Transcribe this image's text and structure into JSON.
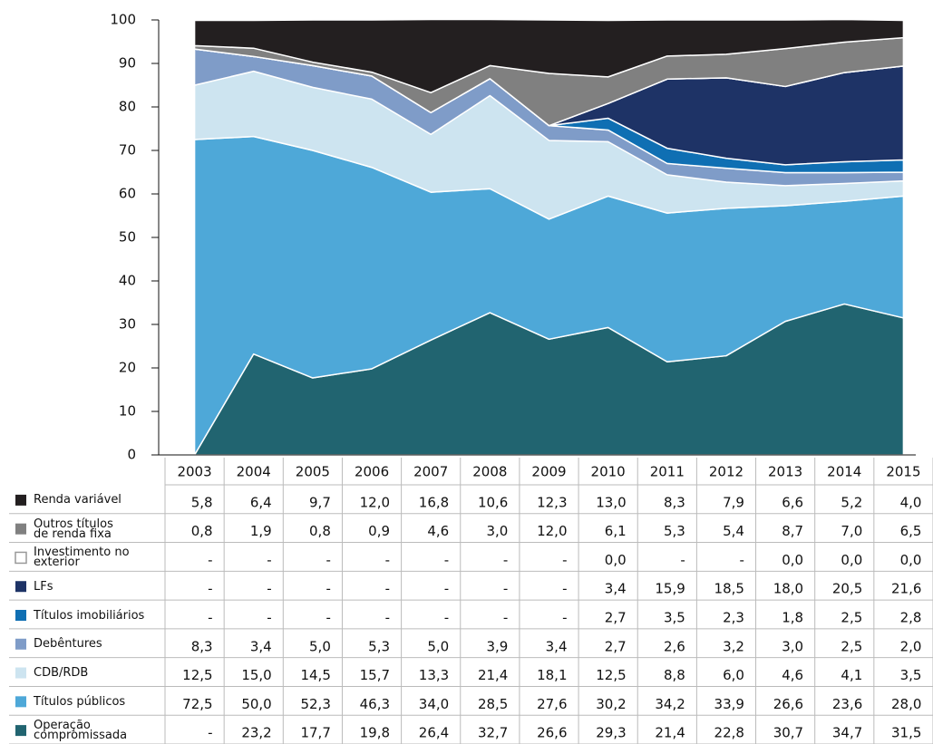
{
  "chart_data": {
    "type": "area",
    "stacked": true,
    "categories": [
      "2003",
      "2004",
      "2005",
      "2006",
      "2007",
      "2008",
      "2009",
      "2010",
      "2011",
      "2012",
      "2013",
      "2014",
      "2015"
    ],
    "ylim": [
      0,
      100
    ],
    "yticks": [
      0,
      10,
      20,
      30,
      40,
      50,
      60,
      70,
      80,
      90,
      100
    ],
    "series": [
      {
        "name": "Renda variável",
        "color": "#231f20",
        "values": [
          5.8,
          6.4,
          9.7,
          12.0,
          16.8,
          10.6,
          12.3,
          13.0,
          8.3,
          7.9,
          6.6,
          5.2,
          4.0
        ],
        "value_labels": [
          "5,8",
          "6,4",
          "9,7",
          "12,0",
          "16,8",
          "10,6",
          "12,3",
          "13,0",
          "8,3",
          "7,9",
          "6,6",
          "5,2",
          "4,0"
        ]
      },
      {
        "name": "Outros títulos\nde renda fixa",
        "color": "#808080",
        "values": [
          0.8,
          1.9,
          0.8,
          0.9,
          4.6,
          3.0,
          12.0,
          6.1,
          5.3,
          5.4,
          8.7,
          7.0,
          6.5
        ],
        "value_labels": [
          "0,8",
          "1,9",
          "0,8",
          "0,9",
          "4,6",
          "3,0",
          "12,0",
          "6,1",
          "5,3",
          "5,4",
          "8,7",
          "7,0",
          "6,5"
        ]
      },
      {
        "name": "Investimento no\nexterior",
        "color": "#ffffff",
        "values": [
          null,
          null,
          null,
          null,
          null,
          null,
          null,
          0.0,
          null,
          null,
          0.0,
          0.0,
          0.0
        ],
        "value_labels": [
          "-",
          "-",
          "-",
          "-",
          "-",
          "-",
          "-",
          "0,0",
          "-",
          "-",
          "0,0",
          "0,0",
          "0,0"
        ]
      },
      {
        "name": "LFs",
        "color": "#1e3366",
        "values": [
          null,
          null,
          null,
          null,
          null,
          null,
          null,
          3.4,
          15.9,
          18.5,
          18.0,
          20.5,
          21.6
        ],
        "value_labels": [
          "-",
          "-",
          "-",
          "-",
          "-",
          "-",
          "-",
          "3,4",
          "15,9",
          "18,5",
          "18,0",
          "20,5",
          "21,6"
        ]
      },
      {
        "name": "Títulos imobiliários",
        "color": "#0f6fb3",
        "values": [
          null,
          null,
          null,
          null,
          null,
          null,
          null,
          2.7,
          3.5,
          2.3,
          1.8,
          2.5,
          2.8
        ],
        "value_labels": [
          "-",
          "-",
          "-",
          "-",
          "-",
          "-",
          "-",
          "2,7",
          "3,5",
          "2,3",
          "1,8",
          "2,5",
          "2,8"
        ]
      },
      {
        "name": "Debêntures",
        "color": "#7f9cc8",
        "values": [
          8.3,
          3.4,
          5.0,
          5.3,
          5.0,
          3.9,
          3.4,
          2.7,
          2.6,
          3.2,
          3.0,
          2.5,
          2.0
        ],
        "value_labels": [
          "8,3",
          "3,4",
          "5,0",
          "5,3",
          "5,0",
          "3,9",
          "3,4",
          "2,7",
          "2,6",
          "3,2",
          "3,0",
          "2,5",
          "2,0"
        ]
      },
      {
        "name": "CDB/RDB",
        "color": "#cde4f0",
        "values": [
          12.5,
          15.0,
          14.5,
          15.7,
          13.3,
          21.4,
          18.1,
          12.5,
          8.8,
          6.0,
          4.6,
          4.1,
          3.5
        ],
        "value_labels": [
          "12,5",
          "15,0",
          "14,5",
          "15,7",
          "13,3",
          "21,4",
          "18,1",
          "12,5",
          "8,8",
          "6,0",
          "4,6",
          "4,1",
          "3,5"
        ]
      },
      {
        "name": "Títulos públicos",
        "color": "#4ea8d8",
        "values": [
          72.5,
          50.0,
          52.3,
          46.3,
          34.0,
          28.5,
          27.6,
          30.2,
          34.2,
          33.9,
          26.6,
          23.6,
          28.0
        ],
        "value_labels": [
          "72,5",
          "50,0",
          "52,3",
          "46,3",
          "34,0",
          "28,5",
          "27,6",
          "30,2",
          "34,2",
          "33,9",
          "26,6",
          "23,6",
          "28,0"
        ]
      },
      {
        "name": "Operação\ncompromissada",
        "color": "#216470",
        "values": [
          null,
          23.2,
          17.7,
          19.8,
          26.4,
          32.7,
          26.6,
          29.3,
          21.4,
          22.8,
          30.7,
          34.7,
          31.5
        ],
        "value_labels": [
          "-",
          "23,2",
          "17,7",
          "19,8",
          "26,4",
          "32,7",
          "26,6",
          "29,3",
          "21,4",
          "22,8",
          "30,7",
          "34,7",
          "31,5"
        ]
      }
    ]
  }
}
